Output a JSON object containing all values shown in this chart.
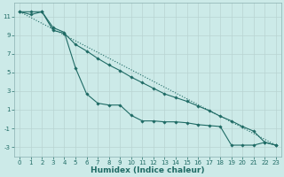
{
  "x_values": [
    0,
    1,
    2,
    3,
    4,
    5,
    6,
    7,
    8,
    9,
    10,
    11,
    12,
    13,
    14,
    15,
    16,
    17,
    18,
    19,
    20,
    21,
    22,
    23
  ],
  "line1_x": [
    0,
    1,
    2,
    3,
    4,
    5,
    6,
    7,
    8,
    9,
    10,
    11,
    12,
    13,
    14,
    15,
    16,
    17,
    18,
    19,
    20,
    21,
    22,
    23
  ],
  "line1_y": [
    11.5,
    11.2,
    11.5,
    9.8,
    9.3,
    5.5,
    2.7,
    1.7,
    1.5,
    1.5,
    0.4,
    -0.2,
    -0.2,
    -0.3,
    -0.3,
    -0.4,
    -0.6,
    -0.7,
    -0.8,
    -2.8,
    -2.8,
    -2.8,
    -2.5,
    -2.8
  ],
  "line2_x": [
    0,
    1,
    2,
    3,
    4,
    5,
    6,
    7,
    8,
    9,
    10,
    11,
    12,
    13,
    14,
    15,
    16,
    17,
    18,
    19,
    20,
    21,
    22,
    23
  ],
  "line2_y": [
    11.5,
    11.5,
    11.5,
    9.5,
    9.2,
    8.0,
    7.3,
    6.5,
    5.8,
    5.2,
    4.5,
    3.9,
    3.3,
    2.7,
    2.3,
    1.9,
    1.4,
    0.9,
    0.3,
    -0.2,
    -0.8,
    -1.3,
    -2.5,
    -2.8
  ],
  "line3_x": [
    0,
    23
  ],
  "line3_y": [
    11.5,
    -2.8
  ],
  "bg_color": "#cceae8",
  "grid_color": "#b8d4d2",
  "line_color": "#1f6b65",
  "marker": "D",
  "marker_size": 1.8,
  "linewidth": 0.8,
  "xlabel": "Humidex (Indice chaleur)",
  "ylim": [
    -4,
    12.5
  ],
  "xlim": [
    -0.5,
    23.5
  ],
  "yticks": [
    -3,
    -1,
    1,
    3,
    5,
    7,
    9,
    11
  ],
  "xticks": [
    0,
    1,
    2,
    3,
    4,
    5,
    6,
    7,
    8,
    9,
    10,
    11,
    12,
    13,
    14,
    15,
    16,
    17,
    18,
    19,
    20,
    21,
    22,
    23
  ],
  "xlabel_fontsize": 6.5,
  "tick_fontsize": 5.0
}
